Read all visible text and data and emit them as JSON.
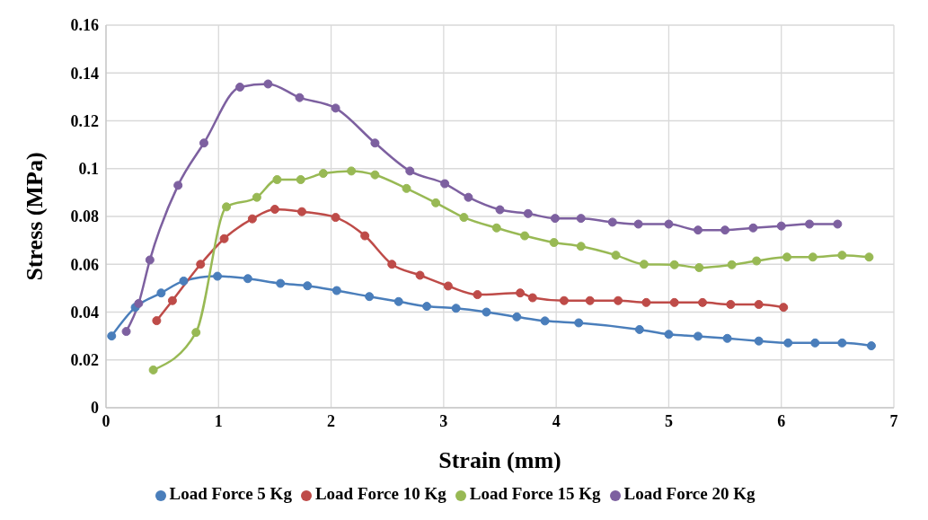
{
  "chart_data": {
    "type": "line",
    "xlabel": "Strain (mm)",
    "ylabel": "Stress (MPa)",
    "xlim": [
      0,
      7
    ],
    "xticks": [
      0,
      1,
      2,
      3,
      4,
      5,
      6,
      7
    ],
    "ylim": [
      0,
      0.16
    ],
    "yticks": [
      0,
      0.02,
      0.04,
      0.06,
      0.08,
      0.1,
      0.12,
      0.14,
      0.16
    ],
    "grid": true,
    "legend": "bottom",
    "marker": "circle",
    "line_style": "solid",
    "series": [
      {
        "name": "Load Force 5 Kg",
        "color": "#4a7ebb",
        "x": [
          0.05,
          0.26,
          0.49,
          0.69,
          0.99,
          1.26,
          1.55,
          1.79,
          2.05,
          2.34,
          2.6,
          2.85,
          3.11,
          3.38,
          3.65,
          3.9,
          4.2,
          4.74,
          5.0,
          5.26,
          5.52,
          5.8,
          6.06,
          6.3,
          6.54,
          6.8
        ],
        "values": [
          0.03,
          0.042,
          0.048,
          0.053,
          0.055,
          0.054,
          0.052,
          0.051,
          0.049,
          0.0465,
          0.0444,
          0.0424,
          0.0416,
          0.04,
          0.038,
          0.0363,
          0.0355,
          0.0327,
          0.0307,
          0.0299,
          0.029,
          0.0279,
          0.0271,
          0.0271,
          0.0271,
          0.0259
        ]
      },
      {
        "name": "Load Force 10 Kg",
        "color": "#be4b48",
        "x": [
          0.45,
          0.59,
          0.84,
          1.05,
          1.3,
          1.5,
          1.74,
          2.04,
          2.3,
          2.54,
          2.79,
          3.04,
          3.3,
          3.68,
          3.79,
          4.07,
          4.3,
          4.55,
          4.8,
          5.05,
          5.3,
          5.55,
          5.8,
          6.02
        ],
        "values": [
          0.0364,
          0.0448,
          0.06,
          0.0707,
          0.079,
          0.083,
          0.082,
          0.0796,
          0.0719,
          0.06,
          0.0554,
          0.0509,
          0.0473,
          0.048,
          0.046,
          0.0448,
          0.0448,
          0.0448,
          0.044,
          0.044,
          0.044,
          0.0432,
          0.0432,
          0.042
        ]
      },
      {
        "name": "Load Force 15 Kg",
        "color": "#98b954",
        "x": [
          0.42,
          0.8,
          1.07,
          1.34,
          1.52,
          1.73,
          1.93,
          2.18,
          2.39,
          2.67,
          2.93,
          3.18,
          3.47,
          3.72,
          3.98,
          4.22,
          4.53,
          4.78,
          5.05,
          5.27,
          5.56,
          5.78,
          6.05,
          6.28,
          6.54,
          6.78
        ],
        "values": [
          0.0158,
          0.0315,
          0.084,
          0.088,
          0.0954,
          0.0954,
          0.098,
          0.099,
          0.0974,
          0.0917,
          0.0857,
          0.0796,
          0.0752,
          0.0719,
          0.0691,
          0.0675,
          0.0638,
          0.06,
          0.0598,
          0.0586,
          0.0598,
          0.0614,
          0.063,
          0.063,
          0.0638,
          0.063
        ]
      },
      {
        "name": "Load Force 20 Kg",
        "color": "#7d60a0",
        "x": [
          0.18,
          0.29,
          0.39,
          0.64,
          0.87,
          1.19,
          1.44,
          1.72,
          2.04,
          2.39,
          2.7,
          3.01,
          3.22,
          3.5,
          3.75,
          3.99,
          4.22,
          4.5,
          4.73,
          5.0,
          5.26,
          5.5,
          5.75,
          6.0,
          6.25,
          6.5
        ],
        "values": [
          0.0319,
          0.0436,
          0.0618,
          0.093,
          0.1107,
          0.1341,
          0.1354,
          0.1297,
          0.1253,
          0.1107,
          0.099,
          0.0937,
          0.088,
          0.0828,
          0.0812,
          0.0792,
          0.0792,
          0.0776,
          0.0768,
          0.0768,
          0.0743,
          0.0743,
          0.0752,
          0.076,
          0.0768,
          0.0768
        ]
      }
    ]
  }
}
